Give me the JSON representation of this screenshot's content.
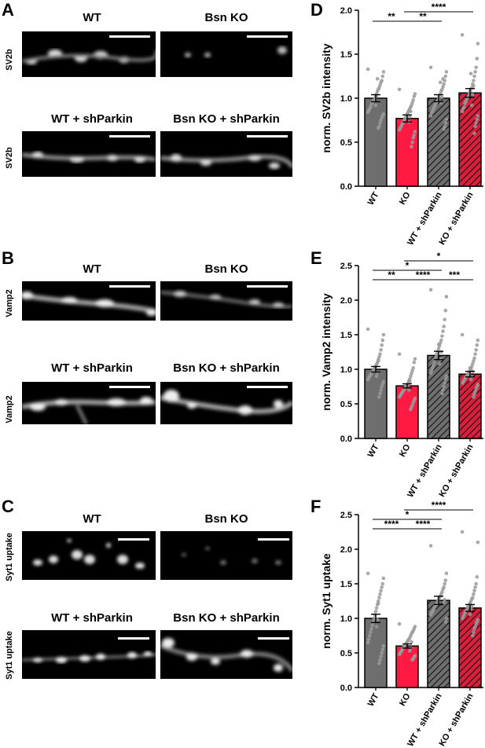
{
  "panels": {
    "A": {
      "letter": "A",
      "titles": [
        "WT",
        "Bsn KO",
        "WT + shParkin",
        "Bsn KO + shParkin"
      ],
      "row_label": "SV2b"
    },
    "B": {
      "letter": "B",
      "titles": [
        "WT",
        "Bsn KO",
        "WT + shParkin",
        "Bsn KO + shParkin"
      ],
      "row_label": "Vamp2"
    },
    "C": {
      "letter": "C",
      "titles": [
        "WT",
        "Bsn KO",
        "WT + shParkin",
        "Bsn KO + shParkin"
      ],
      "row_label": "Syt1 uptake"
    },
    "D": {
      "letter": "D"
    },
    "E": {
      "letter": "E"
    },
    "F": {
      "letter": "F"
    }
  },
  "colors": {
    "wt": "#6e6e6e",
    "ko": "#ff1a44",
    "wt_sh": "#6e6e6e",
    "ko_sh": "#d8203c",
    "dot": "#9a9a9a"
  },
  "chart_data": [
    {
      "type": "bar",
      "panel": "D",
      "ylabel": "norm. SV2b intensity",
      "xlabel": "",
      "categories": [
        "WT",
        "KO",
        "WT + shParkin",
        "KO + shParkin"
      ],
      "values": [
        1.0,
        0.77,
        1.0,
        1.06
      ],
      "sem": [
        0.04,
        0.04,
        0.04,
        0.05
      ],
      "ylim": [
        0,
        2.0
      ],
      "yticks": [
        0.0,
        0.5,
        1.0,
        1.5,
        2.0
      ],
      "hatched": [
        false,
        false,
        true,
        true
      ],
      "significance": [
        {
          "from": 0,
          "to": 1,
          "label": "**"
        },
        {
          "from": 1,
          "to": 2,
          "label": "**"
        },
        {
          "from": 1,
          "to": 3,
          "label": "****"
        }
      ],
      "points": [
        [
          1.33,
          1.3,
          1.25,
          1.2,
          1.18,
          1.15,
          1.12,
          1.1,
          1.08,
          1.05,
          1.03,
          1.0,
          0.98,
          0.97,
          0.95,
          0.93,
          0.9,
          0.88,
          0.86,
          0.84,
          0.82,
          0.8,
          0.78,
          0.75,
          0.72,
          0.68,
          0.66,
          1.22,
          1.02,
          0.92
        ],
        [
          1.1,
          1.05,
          1.02,
          0.98,
          0.95,
          0.92,
          0.9,
          0.88,
          0.86,
          0.84,
          0.82,
          0.8,
          0.78,
          0.76,
          0.74,
          0.72,
          0.7,
          0.68,
          0.66,
          0.64,
          0.62,
          0.58,
          0.55,
          0.5,
          0.45,
          0.85,
          0.79,
          0.73
        ],
        [
          1.35,
          1.3,
          1.25,
          1.2,
          1.16,
          1.13,
          1.1,
          1.08,
          1.05,
          1.03,
          1.0,
          0.98,
          0.96,
          0.94,
          0.92,
          0.9,
          0.88,
          0.86,
          0.84,
          0.8,
          0.76,
          0.72,
          0.68,
          0.65,
          1.22,
          1.01,
          0.95,
          1.18
        ],
        [
          1.72,
          1.62,
          1.45,
          1.35,
          1.3,
          1.25,
          1.2,
          1.16,
          1.12,
          1.1,
          1.08,
          1.05,
          1.02,
          1.0,
          0.98,
          0.96,
          0.94,
          0.9,
          0.88,
          0.85,
          0.8,
          0.76,
          0.72,
          0.68,
          0.6,
          1.14,
          1.04,
          0.92,
          1.28
        ]
      ]
    },
    {
      "type": "bar",
      "panel": "E",
      "ylabel": "norm. Vamp2 intensity",
      "xlabel": "",
      "categories": [
        "WT",
        "KO",
        "WT + shParkin",
        "KO + shParkin"
      ],
      "values": [
        1.0,
        0.76,
        1.2,
        0.93
      ],
      "sem": [
        0.04,
        0.03,
        0.06,
        0.04
      ],
      "ylim": [
        0,
        2.5
      ],
      "yticks": [
        0.0,
        0.5,
        1.0,
        1.5,
        2.0,
        2.5
      ],
      "hatched": [
        false,
        false,
        true,
        true
      ],
      "significance": [
        {
          "from": 0,
          "to": 1,
          "label": "**"
        },
        {
          "from": 1,
          "to": 2,
          "label": "****"
        },
        {
          "from": 2,
          "to": 3,
          "label": "***"
        },
        {
          "from": 0,
          "to": 2,
          "label": "*"
        },
        {
          "from": 1,
          "to": 3,
          "label": "*"
        }
      ],
      "points": [
        [
          1.58,
          1.5,
          1.42,
          1.35,
          1.28,
          1.22,
          1.18,
          1.14,
          1.1,
          1.07,
          1.04,
          1.02,
          1.0,
          0.98,
          0.96,
          0.94,
          0.92,
          0.9,
          0.88,
          0.85,
          0.82,
          0.79,
          0.75,
          0.7,
          0.65,
          0.6,
          1.12,
          0.95,
          0.9,
          1.05
        ],
        [
          1.22,
          1.15,
          1.1,
          1.02,
          0.98,
          0.94,
          0.9,
          0.86,
          0.83,
          0.8,
          0.78,
          0.76,
          0.74,
          0.72,
          0.7,
          0.68,
          0.66,
          0.64,
          0.62,
          0.6,
          0.58,
          0.55,
          0.52,
          0.48,
          0.45,
          0.42,
          0.82,
          0.7,
          0.77
        ],
        [
          2.15,
          2.05,
          1.85,
          1.72,
          1.62,
          1.55,
          1.48,
          1.42,
          1.38,
          1.34,
          1.3,
          1.26,
          1.22,
          1.18,
          1.14,
          1.1,
          1.06,
          1.02,
          0.98,
          0.94,
          0.9,
          0.86,
          0.8,
          0.75,
          0.7,
          0.65,
          1.25,
          1.15,
          1.08,
          1.36
        ],
        [
          1.5,
          1.42,
          1.35,
          1.28,
          1.22,
          1.16,
          1.12,
          1.08,
          1.04,
          1.0,
          0.98,
          0.96,
          0.94,
          0.92,
          0.9,
          0.88,
          0.86,
          0.84,
          0.82,
          0.8,
          0.78,
          0.75,
          0.72,
          0.68,
          0.64,
          0.6,
          0.97,
          0.89,
          0.85,
          1.02,
          0.93
        ]
      ]
    },
    {
      "type": "bar",
      "panel": "F",
      "ylabel": "norm. Syt1 uptake",
      "xlabel": "",
      "categories": [
        "WT",
        "KO",
        "WT + shParkin",
        "KO + shParkin"
      ],
      "values": [
        1.0,
        0.6,
        1.26,
        1.15
      ],
      "sem": [
        0.06,
        0.03,
        0.06,
        0.05
      ],
      "ylim": [
        0,
        2.5
      ],
      "yticks": [
        0.0,
        0.5,
        1.0,
        1.5,
        2.0,
        2.5
      ],
      "hatched": [
        false,
        false,
        true,
        true
      ],
      "significance": [
        {
          "from": 0,
          "to": 1,
          "label": "****"
        },
        {
          "from": 1,
          "to": 2,
          "label": "****"
        },
        {
          "from": 0,
          "to": 2,
          "label": "*"
        },
        {
          "from": 1,
          "to": 3,
          "label": "****"
        }
      ],
      "points": [
        [
          1.65,
          1.58,
          1.5,
          1.45,
          1.4,
          1.35,
          1.3,
          1.25,
          1.2,
          1.15,
          1.1,
          1.05,
          1.0,
          0.95,
          0.9,
          0.85,
          0.8,
          0.75,
          0.7,
          0.65,
          0.6,
          0.55,
          0.5,
          0.45,
          0.4,
          0.35,
          1.22,
          0.98,
          0.88
        ],
        [
          0.92,
          0.88,
          0.85,
          0.82,
          0.8,
          0.78,
          0.75,
          0.72,
          0.7,
          0.68,
          0.66,
          0.64,
          0.62,
          0.6,
          0.58,
          0.56,
          0.54,
          0.52,
          0.5,
          0.48,
          0.46,
          0.44,
          0.42,
          0.4,
          0.66,
          0.57,
          0.53
        ],
        [
          2.05,
          1.65,
          1.55,
          1.5,
          1.45,
          1.42,
          1.38,
          1.35,
          1.32,
          1.3,
          1.28,
          1.25,
          1.22,
          1.2,
          1.18,
          1.15,
          1.12,
          1.1,
          1.08,
          1.05,
          1.0,
          0.95,
          1.27,
          1.23
        ],
        [
          2.25,
          2.1,
          1.6,
          1.5,
          1.45,
          1.4,
          1.35,
          1.3,
          1.28,
          1.25,
          1.22,
          1.2,
          1.18,
          1.15,
          1.12,
          1.1,
          1.08,
          1.05,
          1.02,
          1.0,
          0.98,
          0.95,
          0.92,
          0.88,
          0.85,
          0.8,
          0.75,
          1.17,
          1.13,
          1.06
        ]
      ]
    }
  ]
}
